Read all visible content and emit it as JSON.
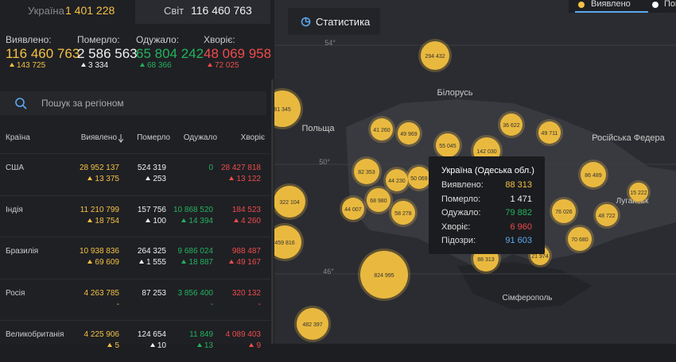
{
  "header": {
    "tabs": [
      {
        "label": "Україна",
        "value": "1 401 228"
      },
      {
        "label": "Світ",
        "value": "116 460 763"
      }
    ]
  },
  "summary": [
    {
      "label": "Виявлено:",
      "value": "116 460 763",
      "delta": "143 725"
    },
    {
      "label": "Померло:",
      "value": "2 586 563",
      "delta": "3 334"
    },
    {
      "label": "Одужало:",
      "value": "65 804 242",
      "delta": "68 366"
    },
    {
      "label": "Хворіє:",
      "value": "48 069 958",
      "delta": "72 025"
    }
  ],
  "search": {
    "placeholder": "Пошук за регіоном"
  },
  "table": {
    "columns": [
      "Країна",
      "Виявлено",
      "Померло",
      "Одужало",
      "Хворіє"
    ],
    "rows": [
      {
        "country": "США",
        "cells": [
          [
            "28 952 137",
            "13 375"
          ],
          [
            "524 319",
            "253"
          ],
          [
            "0",
            null
          ],
          [
            "28 427 818",
            "13 122"
          ]
        ]
      },
      {
        "country": "Індія",
        "cells": [
          [
            "11 210 799",
            "18 754"
          ],
          [
            "157 756",
            "100"
          ],
          [
            "10 868 520",
            "14 394"
          ],
          [
            "184 523",
            "4 260"
          ]
        ]
      },
      {
        "country": "Бразилія",
        "cells": [
          [
            "10 938 836",
            "69 609"
          ],
          [
            "264 325",
            "1 555"
          ],
          [
            "9 686 024",
            "18 887"
          ],
          [
            "988 487",
            "49 167"
          ]
        ]
      },
      {
        "country": "Росія",
        "cells": [
          [
            "4 263 785",
            "-"
          ],
          [
            "87 253",
            null
          ],
          [
            "3 856 400",
            "-"
          ],
          [
            "320 132",
            "-"
          ]
        ]
      },
      {
        "country": "Великобританія",
        "cells": [
          [
            "4 225 906",
            "5"
          ],
          [
            "124 654",
            "10"
          ],
          [
            "11 849",
            "13"
          ],
          [
            "4 089 403",
            "9"
          ]
        ]
      }
    ]
  },
  "map": {
    "button": "Статистика",
    "legend": [
      "Виявлено",
      "Померло"
    ],
    "labels": [
      "54°",
      "50°",
      "46°",
      "Польща",
      "Білорусь",
      "Російська Федера",
      "Луганськ",
      "Сімферополь"
    ],
    "bubbles": [
      "294 432",
      "81 345",
      "41 260",
      "49 969",
      "36 622",
      "49 711",
      "55 045",
      "142 030",
      "82 353",
      "44 230",
      "50 069",
      "86 489",
      "15 222",
      "322 104",
      "68 980",
      "44 007",
      "58 278",
      "76 026",
      "48 722",
      "459 816",
      "70 680",
      "824 995",
      "88 313",
      "21 974",
      "482 397"
    ],
    "tooltip": {
      "title": "Україна (Одеська обл.)",
      "rows": [
        {
          "label": "Виявлено:",
          "value": "88 313"
        },
        {
          "label": "Померло:",
          "value": "1 471"
        },
        {
          "label": "Одужало:",
          "value": "79 882"
        },
        {
          "label": "Хворіє:",
          "value": "6 960"
        },
        {
          "label": "Підозри:",
          "value": "91 603"
        }
      ]
    }
  }
}
